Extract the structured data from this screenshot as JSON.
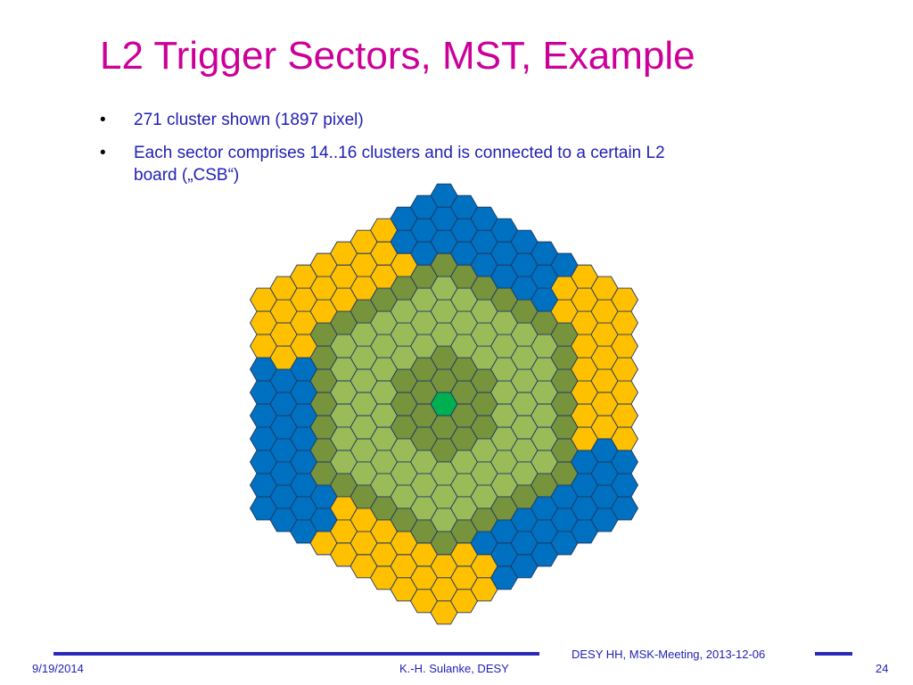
{
  "slide": {
    "title": "L2 Trigger Sectors, MST, Example",
    "bullets": [
      "271 cluster shown (1897 pixel)",
      "Each sector comprises 14..16 clusters and is connected to a certain L2 board („CSB“)"
    ]
  },
  "footer": {
    "date": "9/19/2014",
    "author": "K.-H. Sulanke, DESY",
    "meeting": "DESY HH, MSK-Meeting, 2013-12-06",
    "page": "24"
  },
  "colors": {
    "blue": "#0070c0",
    "orange": "#ffc000",
    "light_green": "#9bbb59",
    "dark_green": "#77933c",
    "center_green": "#00b050",
    "outline": "#1f3864",
    "title": "#cc0099",
    "text": "#1f1fb4"
  },
  "hexgrid": {
    "layout": "flat-top hexagonal cells arranged in a large pointy-top hexagon",
    "total_cells": 271,
    "center_cell": "center_green",
    "rings": {
      "0": "center_green",
      "1": "dark_green",
      "2": "dark_green",
      "3": "light_green",
      "4": "light_green",
      "5": "light_green",
      "6": "dark_green"
    },
    "outer_sector_pattern": [
      "orange",
      "blue",
      "orange",
      "blue",
      "orange",
      "blue"
    ]
  }
}
